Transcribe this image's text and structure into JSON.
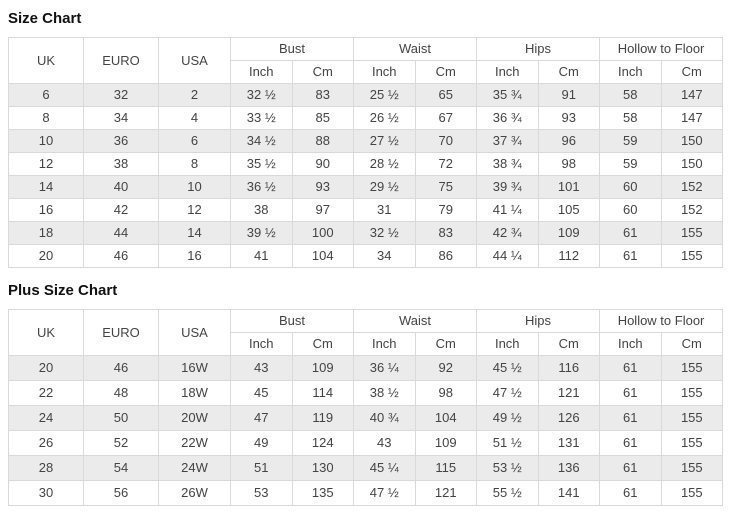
{
  "colors": {
    "row_stripe": "#ebebeb",
    "border": "#d9d9d9",
    "cell_text": "#444444",
    "title_text": "#111111"
  },
  "tables": [
    {
      "title": "Size Chart",
      "group_headers": [
        {
          "label": "UK",
          "rowspan": 2
        },
        {
          "label": "EURO",
          "rowspan": 2
        },
        {
          "label": "USA",
          "rowspan": 2
        },
        {
          "label": "Bust",
          "colspan": 2
        },
        {
          "label": "Waist",
          "colspan": 2
        },
        {
          "label": "Hips",
          "colspan": 2
        },
        {
          "label": "Hollow to Floor",
          "colspan": 2
        }
      ],
      "sub_headers": [
        "Inch",
        "Cm",
        "Inch",
        "Cm",
        "Inch",
        "Cm",
        "Inch",
        "Cm"
      ],
      "rows": [
        [
          "6",
          "32",
          "2",
          "32 ½",
          "83",
          "25 ½",
          "65",
          "35 ¾",
          "91",
          "58",
          "147"
        ],
        [
          "8",
          "34",
          "4",
          "33 ½",
          "85",
          "26 ½",
          "67",
          "36 ¾",
          "93",
          "58",
          "147"
        ],
        [
          "10",
          "36",
          "6",
          "34 ½",
          "88",
          "27 ½",
          "70",
          "37 ¾",
          "96",
          "59",
          "150"
        ],
        [
          "12",
          "38",
          "8",
          "35 ½",
          "90",
          "28 ½",
          "72",
          "38 ¾",
          "98",
          "59",
          "150"
        ],
        [
          "14",
          "40",
          "10",
          "36 ½",
          "93",
          "29 ½",
          "75",
          "39 ¾",
          "101",
          "60",
          "152"
        ],
        [
          "16",
          "42",
          "12",
          "38",
          "97",
          "31",
          "79",
          "41 ¼",
          "105",
          "60",
          "152"
        ],
        [
          "18",
          "44",
          "14",
          "39 ½",
          "100",
          "32 ½",
          "83",
          "42 ¾",
          "109",
          "61",
          "155"
        ],
        [
          "20",
          "46",
          "16",
          "41",
          "104",
          "34",
          "86",
          "44 ¼",
          "112",
          "61",
          "155"
        ]
      ]
    },
    {
      "title": "Plus Size Chart",
      "group_headers": [
        {
          "label": "UK",
          "rowspan": 2
        },
        {
          "label": "EURO",
          "rowspan": 2
        },
        {
          "label": "USA",
          "rowspan": 2
        },
        {
          "label": "Bust",
          "colspan": 2
        },
        {
          "label": "Waist",
          "colspan": 2
        },
        {
          "label": "Hips",
          "colspan": 2
        },
        {
          "label": "Hollow to Floor",
          "colspan": 2
        }
      ],
      "sub_headers": [
        "Inch",
        "Cm",
        "Inch",
        "Cm",
        "Inch",
        "Cm",
        "Inch",
        "Cm"
      ],
      "rows": [
        [
          "20",
          "46",
          "16W",
          "43",
          "109",
          "36 ¼",
          "92",
          "45 ½",
          "116",
          "61",
          "155"
        ],
        [
          "22",
          "48",
          "18W",
          "45",
          "114",
          "38 ½",
          "98",
          "47 ½",
          "121",
          "61",
          "155"
        ],
        [
          "24",
          "50",
          "20W",
          "47",
          "119",
          "40 ¾",
          "104",
          "49 ½",
          "126",
          "61",
          "155"
        ],
        [
          "26",
          "52",
          "22W",
          "49",
          "124",
          "43",
          "109",
          "51 ½",
          "131",
          "61",
          "155"
        ],
        [
          "28",
          "54",
          "24W",
          "51",
          "130",
          "45 ¼",
          "115",
          "53 ½",
          "136",
          "61",
          "155"
        ],
        [
          "30",
          "56",
          "26W",
          "53",
          "135",
          "47 ½",
          "121",
          "55 ½",
          "141",
          "61",
          "155"
        ]
      ]
    }
  ]
}
